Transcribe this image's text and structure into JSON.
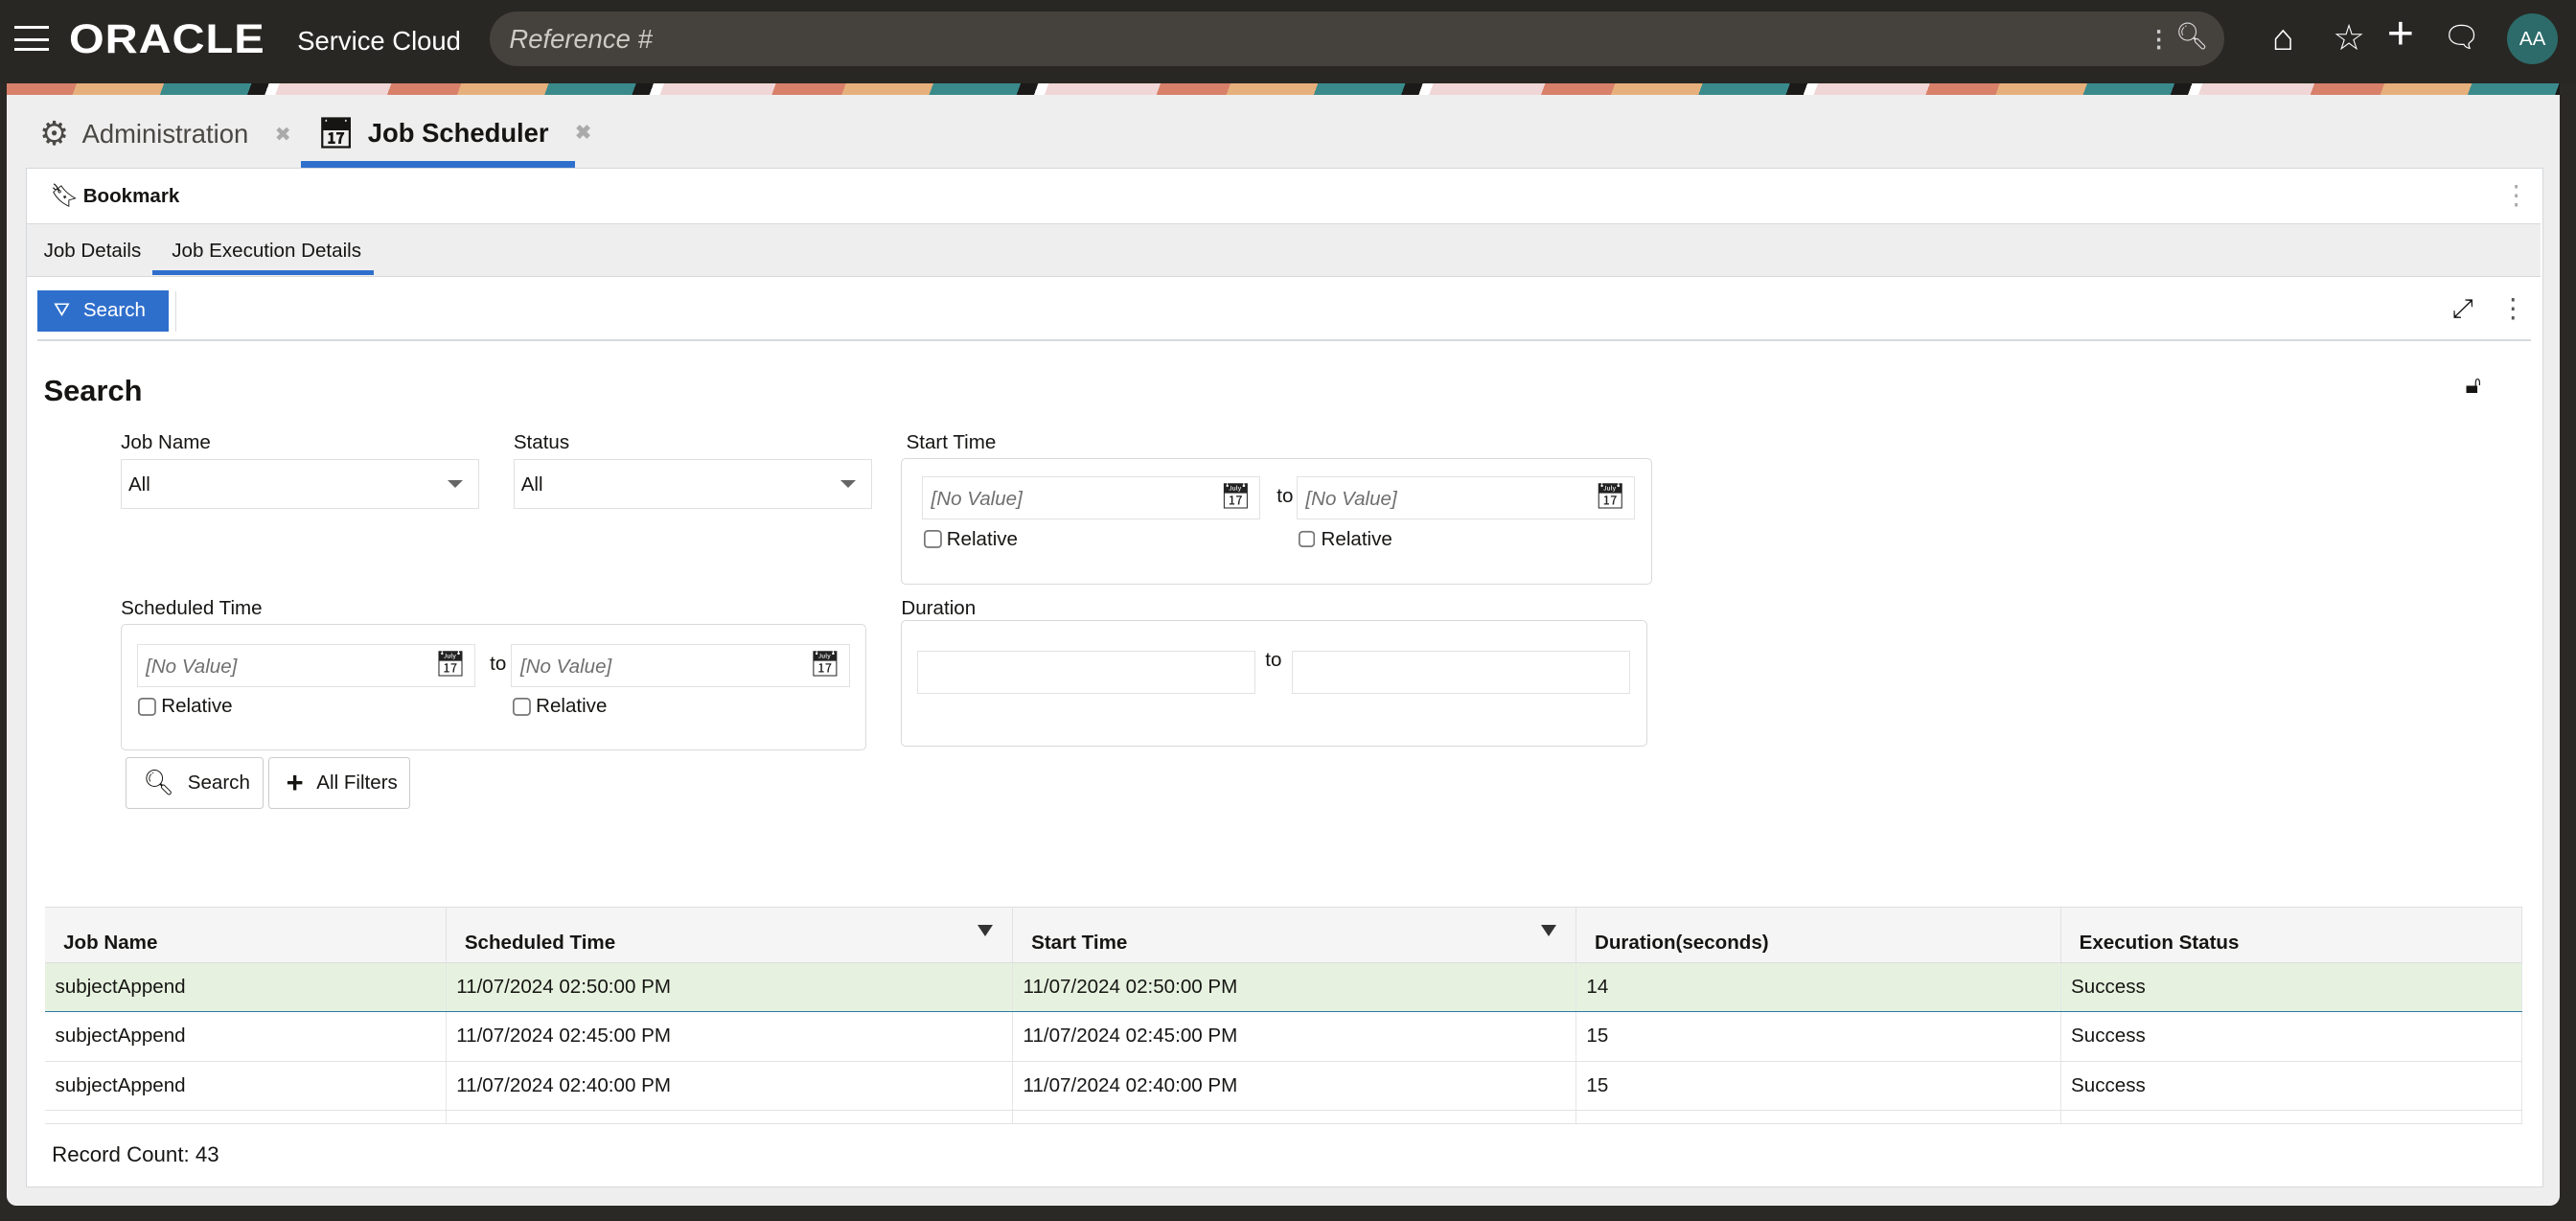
{
  "header": {
    "brand": "ORACLE",
    "product": "Service Cloud",
    "search_placeholder": "Reference #",
    "avatar_initials": "AA",
    "icons": [
      "menu-icon",
      "search-icon",
      "home-icon",
      "star-icon",
      "plus-icon",
      "chat-icon"
    ]
  },
  "tabs": [
    {
      "label": "Administration",
      "icon": "gear-icon",
      "active": false
    },
    {
      "label": "Job Scheduler",
      "icon": "calendar-gear-icon",
      "active": true
    }
  ],
  "bookmark_label": "Bookmark",
  "subtabs": [
    {
      "label": "Job Details",
      "active": false
    },
    {
      "label": "Job Execution Details",
      "active": true
    }
  ],
  "toolbar": {
    "search_label": "Search"
  },
  "search": {
    "title": "Search",
    "job_name": {
      "label": "Job Name",
      "value": "All"
    },
    "status": {
      "label": "Status",
      "value": "All"
    },
    "start_time": {
      "label": "Start Time",
      "from_placeholder": "[No Value]",
      "to_placeholder": "[No Value]",
      "to_label": "to",
      "relative_label": "Relative"
    },
    "scheduled_time": {
      "label": "Scheduled Time",
      "from_placeholder": "[No Value]",
      "to_placeholder": "[No Value]",
      "to_label": "to",
      "relative_label": "Relative"
    },
    "duration": {
      "label": "Duration",
      "to_label": "to"
    },
    "search_button": "Search",
    "all_filters_button": "All Filters"
  },
  "table": {
    "columns": [
      "Job Name",
      "Scheduled Time",
      "Start Time",
      "Duration(seconds)",
      "Execution Status"
    ],
    "rows": [
      [
        "subjectAppend",
        "11/07/2024 02:50:00 PM",
        "11/07/2024 02:50:00 PM",
        "14",
        "Success"
      ],
      [
        "subjectAppend",
        "11/07/2024 02:45:00 PM",
        "11/07/2024 02:45:00 PM",
        "15",
        "Success"
      ],
      [
        "subjectAppend",
        "11/07/2024 02:40:00 PM",
        "11/07/2024 02:40:00 PM",
        "15",
        "Success"
      ]
    ],
    "selected_row": 0
  },
  "record_count": "Record Count: 43",
  "colors": {
    "accent": "#2f6fcc",
    "topbar": "#292723",
    "selected_row": "#e6f2df",
    "avatar": "#2c6b6a"
  }
}
